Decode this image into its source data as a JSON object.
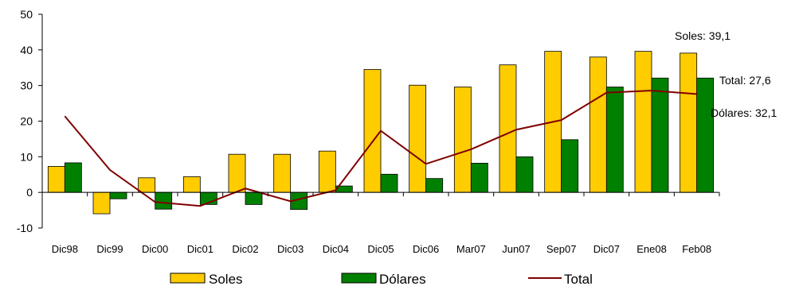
{
  "chart_data": {
    "type": "bar",
    "title": "",
    "xlabel": "",
    "ylabel": "",
    "ylim": [
      -10,
      50
    ],
    "yticks": [
      -10,
      0,
      10,
      20,
      30,
      40,
      50
    ],
    "grid": false,
    "legend_position": "bottom",
    "categories": [
      "Dic98",
      "Dic99",
      "Dic00",
      "Dic01",
      "Dic02",
      "Dic03",
      "Dic04",
      "Dic05",
      "Dic06",
      "Mar07",
      "Jun07",
      "Sep07",
      "Dic07",
      "Ene08",
      "Feb08"
    ],
    "series": [
      {
        "name": "Soles",
        "kind": "bar",
        "color": "#FFCC00",
        "values": [
          7.3,
          -6.0,
          4.1,
          4.4,
          10.7,
          10.7,
          11.6,
          34.5,
          30.1,
          29.6,
          35.8,
          39.6,
          38.0,
          39.6,
          39.1
        ]
      },
      {
        "name": "Dólares",
        "kind": "bar",
        "color": "#008000",
        "values": [
          8.3,
          -1.8,
          -4.7,
          -3.4,
          -3.4,
          -4.8,
          1.8,
          5.1,
          3.9,
          8.2,
          10.0,
          14.8,
          29.6,
          32.1,
          32.1
        ]
      },
      {
        "name": "Total",
        "kind": "line",
        "color": "#800000",
        "values": [
          21.4,
          6.3,
          -2.7,
          -3.8,
          1.1,
          -2.5,
          0.6,
          17.3,
          8.0,
          12.1,
          17.6,
          20.3,
          28.0,
          28.6,
          27.6
        ]
      }
    ],
    "annotations": [
      "Soles: 39,1",
      "Total: 27,6",
      "Dólares: 32,1"
    ]
  }
}
